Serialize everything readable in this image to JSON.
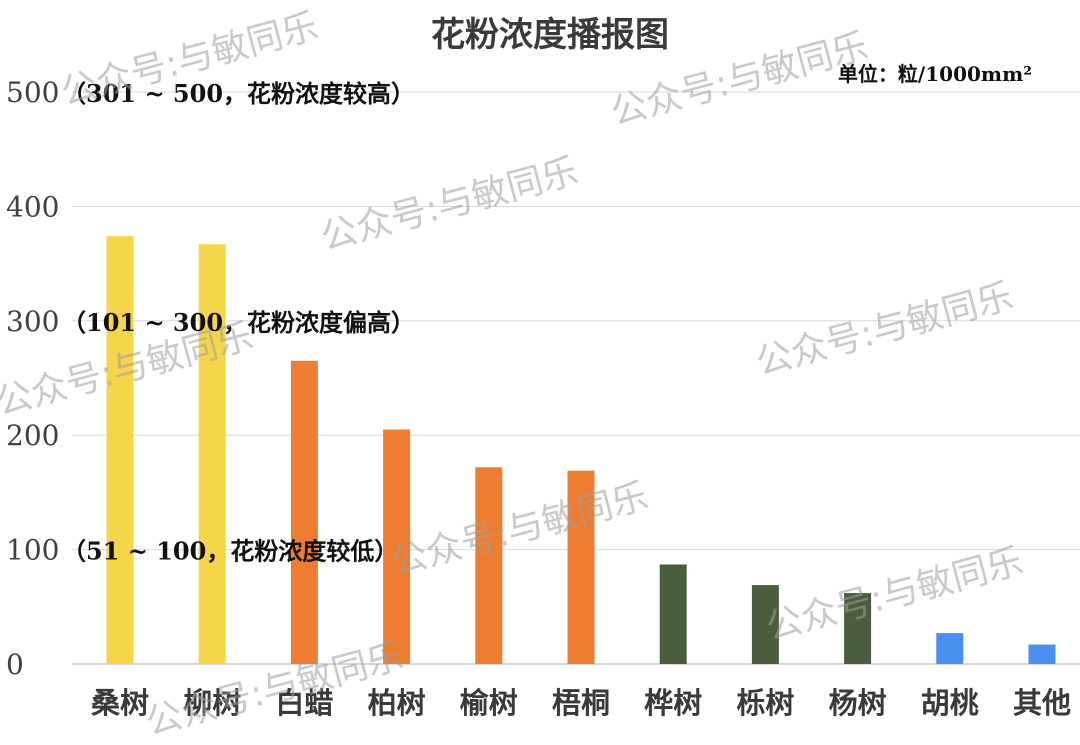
{
  "chart_data": {
    "type": "bar",
    "title": "花粉浓度播报图",
    "unit_label": "单位：粒/1000mm²",
    "categories": [
      "桑树",
      "柳树",
      "白蜡",
      "柏树",
      "榆树",
      "梧桐",
      "桦树",
      "栎树",
      "杨树",
      "胡桃",
      "其他"
    ],
    "values": [
      374,
      367,
      265,
      205,
      172,
      169,
      87,
      69,
      62,
      27,
      17
    ],
    "colors": [
      "#F5D54A",
      "#F5D54A",
      "#EE7D31",
      "#EE7D31",
      "#EE7D31",
      "#EE7D31",
      "#4A5E3E",
      "#4A5E3E",
      "#4A5E3E",
      "#4A8EF0",
      "#4A8EF0"
    ],
    "ylim": [
      0,
      500
    ],
    "yticks": [
      0,
      100,
      200,
      300,
      400,
      500
    ],
    "grid": true,
    "xlabel": "",
    "ylabel": "",
    "bands": [
      {
        "label": "（301 ~ 500，花粉浓度较高）",
        "at_value": 500
      },
      {
        "label": "（101 ~ 300，花粉浓度偏高）",
        "at_value": 300
      },
      {
        "label": "（51 ~ 100，花粉浓度较低）",
        "at_value": 100
      }
    ]
  },
  "watermark": "公众号:与敏同乐"
}
